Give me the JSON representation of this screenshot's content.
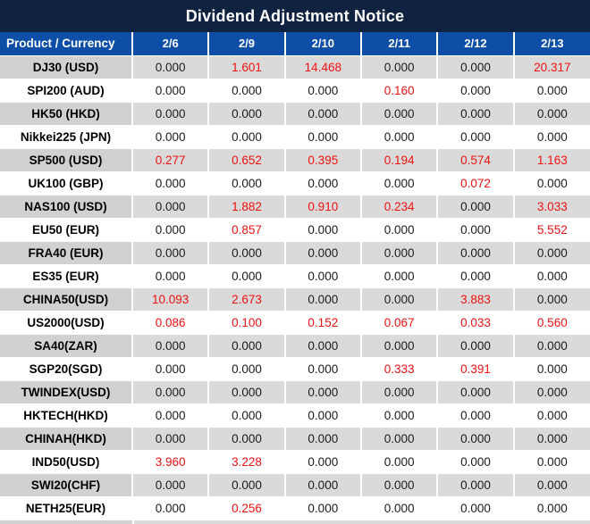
{
  "title": "Dividend Adjustment Notice",
  "colors": {
    "title_bg": "#0f2240",
    "header_bg": "#0d4ea6",
    "row_gray": "#dadada",
    "label_gray": "#d2d0d0",
    "row_white": "#ffffff",
    "value_red": "#ee1111",
    "value_black": "#1a1a1a",
    "separator": "#ffffff"
  },
  "table": {
    "header": {
      "product_col": "Product / Currency",
      "date_cols": [
        "2/6",
        "2/9",
        "2/10",
        "2/11",
        "2/12",
        "2/13"
      ]
    },
    "rows": [
      {
        "label": "DJ30 (USD)",
        "values": [
          "0.000",
          "1.601",
          "14.468",
          "0.000",
          "0.000",
          "20.317"
        ],
        "red": [
          false,
          true,
          true,
          false,
          false,
          true
        ]
      },
      {
        "label": "SPI200 (AUD)",
        "values": [
          "0.000",
          "0.000",
          "0.000",
          "0.160",
          "0.000",
          "0.000"
        ],
        "red": [
          false,
          false,
          false,
          true,
          false,
          false
        ]
      },
      {
        "label": "HK50 (HKD)",
        "values": [
          "0.000",
          "0.000",
          "0.000",
          "0.000",
          "0.000",
          "0.000"
        ],
        "red": [
          false,
          false,
          false,
          false,
          false,
          false
        ]
      },
      {
        "label": "Nikkei225 (JPN)",
        "values": [
          "0.000",
          "0.000",
          "0.000",
          "0.000",
          "0.000",
          "0.000"
        ],
        "red": [
          false,
          false,
          false,
          false,
          false,
          false
        ]
      },
      {
        "label": "SP500 (USD)",
        "values": [
          "0.277",
          "0.652",
          "0.395",
          "0.194",
          "0.574",
          "1.163"
        ],
        "red": [
          true,
          true,
          true,
          true,
          true,
          true
        ]
      },
      {
        "label": "UK100 (GBP)",
        "values": [
          "0.000",
          "0.000",
          "0.000",
          "0.000",
          "0.072",
          "0.000"
        ],
        "red": [
          false,
          false,
          false,
          false,
          true,
          false
        ]
      },
      {
        "label": "NAS100 (USD)",
        "values": [
          "0.000",
          "1.882",
          "0.910",
          "0.234",
          "0.000",
          "3.033"
        ],
        "red": [
          false,
          true,
          true,
          true,
          false,
          true
        ]
      },
      {
        "label": "EU50 (EUR)",
        "values": [
          "0.000",
          "0.857",
          "0.000",
          "0.000",
          "0.000",
          "5.552"
        ],
        "red": [
          false,
          true,
          false,
          false,
          false,
          true
        ]
      },
      {
        "label": "FRA40 (EUR)",
        "values": [
          "0.000",
          "0.000",
          "0.000",
          "0.000",
          "0.000",
          "0.000"
        ],
        "red": [
          false,
          false,
          false,
          false,
          false,
          false
        ]
      },
      {
        "label": "ES35 (EUR)",
        "values": [
          "0.000",
          "0.000",
          "0.000",
          "0.000",
          "0.000",
          "0.000"
        ],
        "red": [
          false,
          false,
          false,
          false,
          false,
          false
        ]
      },
      {
        "label": "CHINA50(USD)",
        "values": [
          "10.093",
          "2.673",
          "0.000",
          "0.000",
          "3.883",
          "0.000"
        ],
        "red": [
          true,
          true,
          false,
          false,
          true,
          false
        ]
      },
      {
        "label": "US2000(USD)",
        "values": [
          "0.086",
          "0.100",
          "0.152",
          "0.067",
          "0.033",
          "0.560"
        ],
        "red": [
          true,
          true,
          true,
          true,
          true,
          true
        ]
      },
      {
        "label": "SA40(ZAR)",
        "values": [
          "0.000",
          "0.000",
          "0.000",
          "0.000",
          "0.000",
          "0.000"
        ],
        "red": [
          false,
          false,
          false,
          false,
          false,
          false
        ]
      },
      {
        "label": "SGP20(SGD)",
        "values": [
          "0.000",
          "0.000",
          "0.000",
          "0.333",
          "0.391",
          "0.000"
        ],
        "red": [
          false,
          false,
          false,
          true,
          true,
          false
        ]
      },
      {
        "label": "TWINDEX(USD)",
        "values": [
          "0.000",
          "0.000",
          "0.000",
          "0.000",
          "0.000",
          "0.000"
        ],
        "red": [
          false,
          false,
          false,
          false,
          false,
          false
        ]
      },
      {
        "label": "HKTECH(HKD)",
        "values": [
          "0.000",
          "0.000",
          "0.000",
          "0.000",
          "0.000",
          "0.000"
        ],
        "red": [
          false,
          false,
          false,
          false,
          false,
          false
        ]
      },
      {
        "label": "CHINAH(HKD)",
        "values": [
          "0.000",
          "0.000",
          "0.000",
          "0.000",
          "0.000",
          "0.000"
        ],
        "red": [
          false,
          false,
          false,
          false,
          false,
          false
        ]
      },
      {
        "label": "IND50(USD)",
        "values": [
          "3.960",
          "3.228",
          "0.000",
          "0.000",
          "0.000",
          "0.000"
        ],
        "red": [
          true,
          true,
          false,
          false,
          false,
          false
        ]
      },
      {
        "label": "SWI20(CHF)",
        "values": [
          "0.000",
          "0.000",
          "0.000",
          "0.000",
          "0.000",
          "0.000"
        ],
        "red": [
          false,
          false,
          false,
          false,
          false,
          false
        ]
      },
      {
        "label": "NETH25(EUR)",
        "values": [
          "0.000",
          "0.256",
          "0.000",
          "0.000",
          "0.000",
          "0.000"
        ],
        "red": [
          false,
          true,
          false,
          false,
          false,
          false
        ]
      }
    ]
  },
  "chart_data": {
    "type": "table",
    "title": "Dividend Adjustment Notice",
    "columns": [
      "Product / Currency",
      "2/6",
      "2/9",
      "2/10",
      "2/11",
      "2/12",
      "2/13"
    ],
    "rows": [
      [
        "DJ30 (USD)",
        0.0,
        1.601,
        14.468,
        0.0,
        0.0,
        20.317
      ],
      [
        "SPI200 (AUD)",
        0.0,
        0.0,
        0.0,
        0.16,
        0.0,
        0.0
      ],
      [
        "HK50 (HKD)",
        0.0,
        0.0,
        0.0,
        0.0,
        0.0,
        0.0
      ],
      [
        "Nikkei225 (JPN)",
        0.0,
        0.0,
        0.0,
        0.0,
        0.0,
        0.0
      ],
      [
        "SP500 (USD)",
        0.277,
        0.652,
        0.395,
        0.194,
        0.574,
        1.163
      ],
      [
        "UK100 (GBP)",
        0.0,
        0.0,
        0.0,
        0.0,
        0.072,
        0.0
      ],
      [
        "NAS100 (USD)",
        0.0,
        1.882,
        0.91,
        0.234,
        0.0,
        3.033
      ],
      [
        "EU50 (EUR)",
        0.0,
        0.857,
        0.0,
        0.0,
        0.0,
        5.552
      ],
      [
        "FRA40 (EUR)",
        0.0,
        0.0,
        0.0,
        0.0,
        0.0,
        0.0
      ],
      [
        "ES35 (EUR)",
        0.0,
        0.0,
        0.0,
        0.0,
        0.0,
        0.0
      ],
      [
        "CHINA50(USD)",
        10.093,
        2.673,
        0.0,
        0.0,
        3.883,
        0.0
      ],
      [
        "US2000(USD)",
        0.086,
        0.1,
        0.152,
        0.067,
        0.033,
        0.56
      ],
      [
        "SA40(ZAR)",
        0.0,
        0.0,
        0.0,
        0.0,
        0.0,
        0.0
      ],
      [
        "SGP20(SGD)",
        0.0,
        0.0,
        0.0,
        0.333,
        0.391,
        0.0
      ],
      [
        "TWINDEX(USD)",
        0.0,
        0.0,
        0.0,
        0.0,
        0.0,
        0.0
      ],
      [
        "HKTECH(HKD)",
        0.0,
        0.0,
        0.0,
        0.0,
        0.0,
        0.0
      ],
      [
        "CHINAH(HKD)",
        0.0,
        0.0,
        0.0,
        0.0,
        0.0,
        0.0
      ],
      [
        "IND50(USD)",
        3.96,
        3.228,
        0.0,
        0.0,
        0.0,
        0.0
      ],
      [
        "SWI20(CHF)",
        0.0,
        0.0,
        0.0,
        0.0,
        0.0,
        0.0
      ],
      [
        "NETH25(EUR)",
        0.0,
        0.256,
        0.0,
        0.0,
        0.0,
        0.0
      ]
    ],
    "notes": "Non-zero dividend adjustment values are highlighted in red; zero values in black. Rows alternate gray/white starting with gray."
  }
}
